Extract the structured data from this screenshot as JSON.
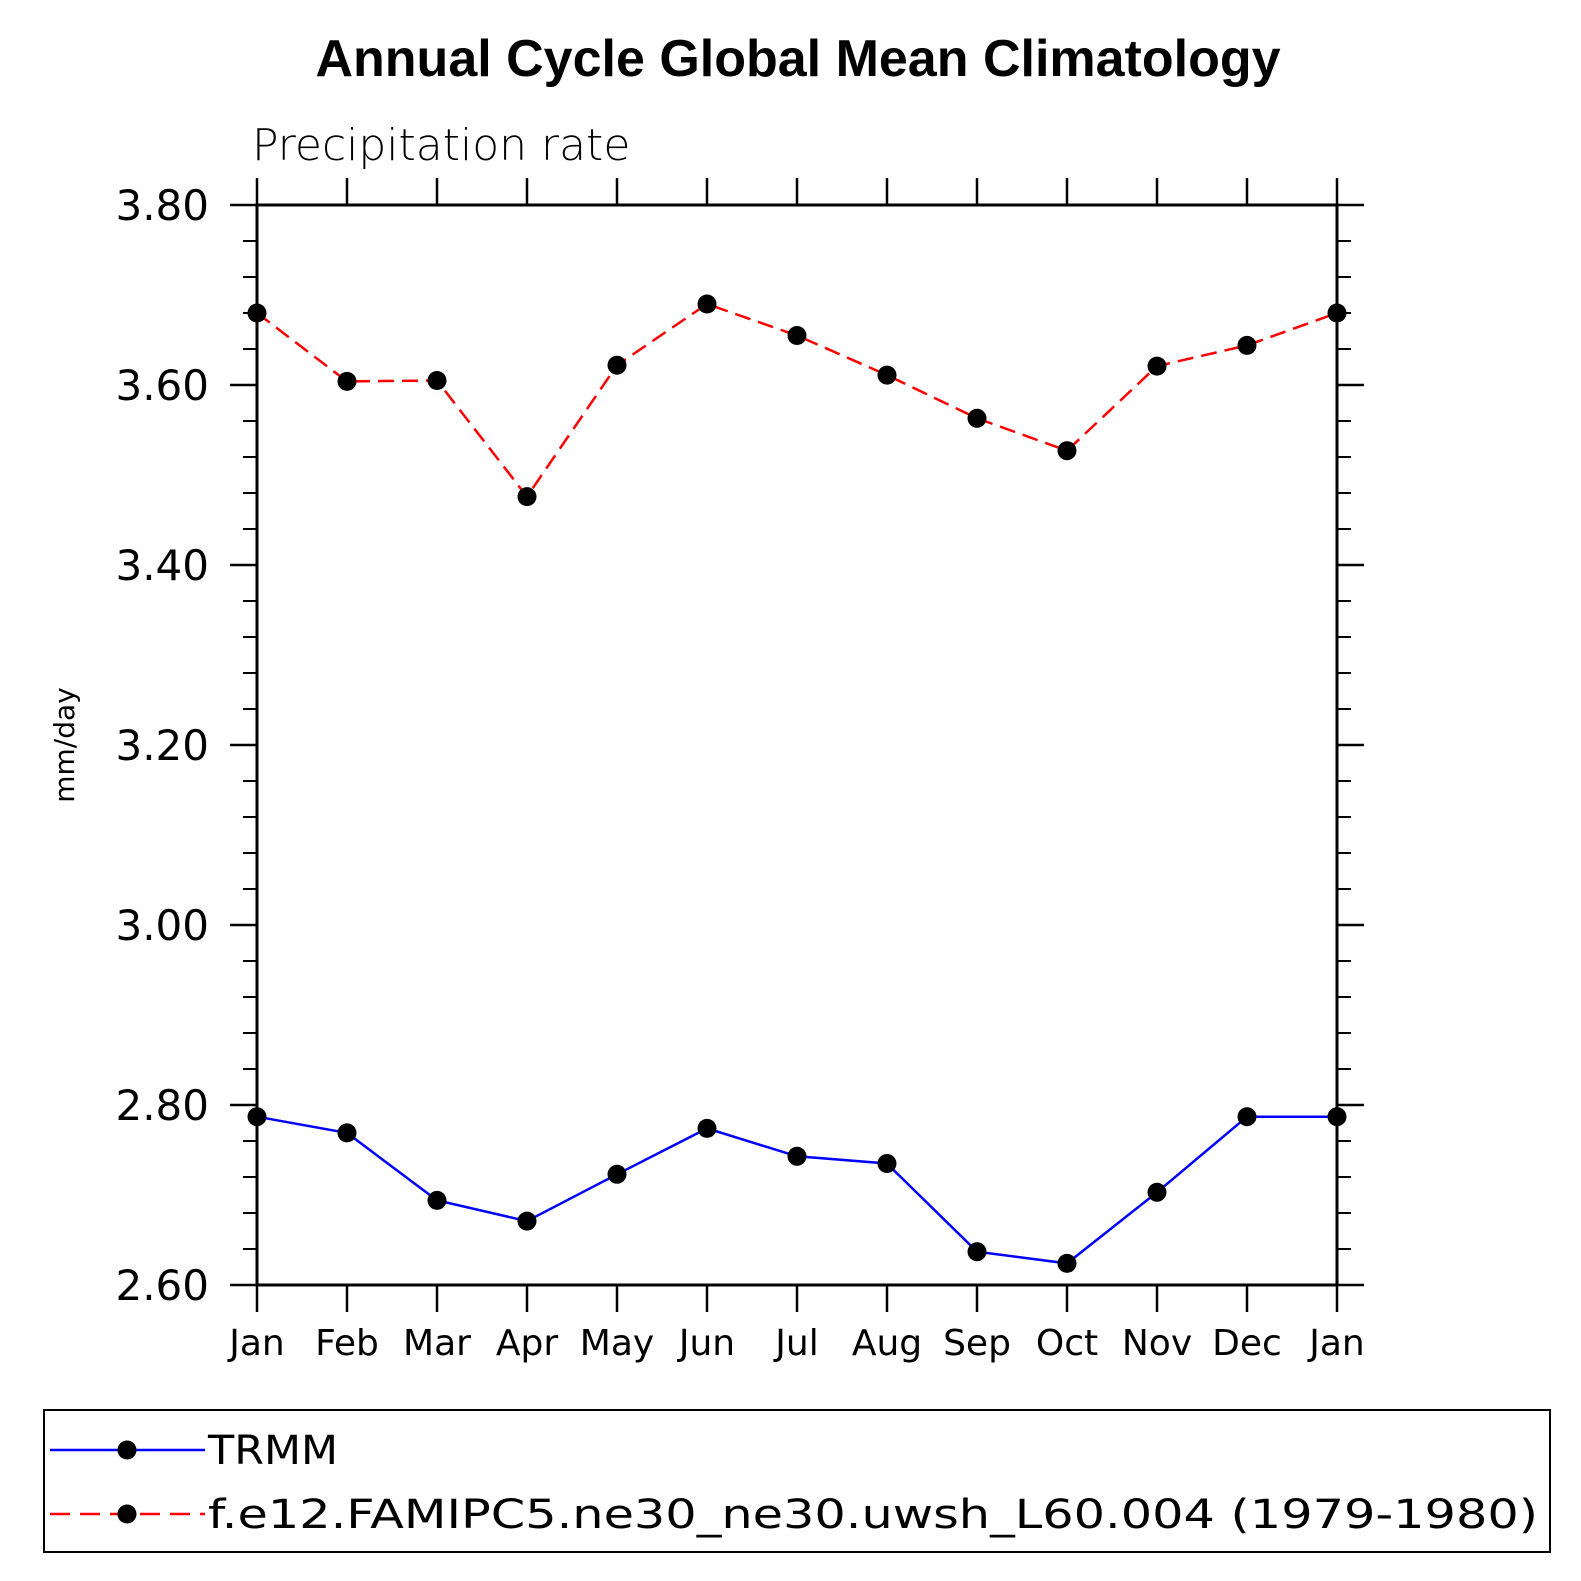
{
  "chart_data": {
    "type": "line",
    "title": "Annual Cycle Global Mean Climatology",
    "subtitle": "Precipitation rate",
    "xlabel": "",
    "ylabel": "mm/day",
    "categories": [
      "Jan",
      "Feb",
      "Mar",
      "Apr",
      "May",
      "Jun",
      "Jul",
      "Aug",
      "Sep",
      "Oct",
      "Nov",
      "Dec",
      "Jan"
    ],
    "ylim": [
      2.6,
      3.8
    ],
    "yticks": [
      "2.60",
      "2.80",
      "3.00",
      "3.20",
      "3.40",
      "3.60",
      "3.80"
    ],
    "grid": false,
    "legend_position": "bottom",
    "series": [
      {
        "name": "TRMM",
        "color": "#0000ff",
        "line_style": "solid",
        "marker": "filled-circle",
        "values": [
          2.787,
          2.769,
          2.694,
          2.671,
          2.723,
          2.774,
          2.743,
          2.735,
          2.637,
          2.624,
          2.703,
          2.787,
          2.787
        ]
      },
      {
        "name": "f.e12.FAMIPC5.ne30_ne30.uwsh_L60.004 (1979-1980)",
        "color": "#ff0000",
        "line_style": "dashed",
        "marker": "filled-circle",
        "values": [
          3.68,
          3.604,
          3.605,
          3.476,
          3.622,
          3.69,
          3.655,
          3.611,
          3.563,
          3.527,
          3.621,
          3.644,
          3.68
        ]
      }
    ]
  }
}
